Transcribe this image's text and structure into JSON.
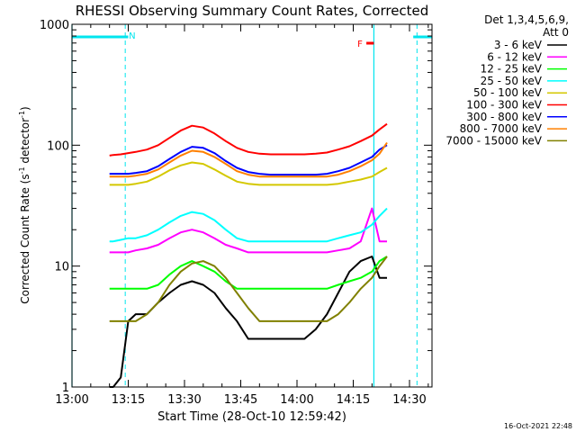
{
  "chart_data": {
    "type": "line",
    "title": "RHESSI Observing Summary Count Rates, Corrected",
    "xlabel": "Start Time (28-Oct-10 12:59:42)",
    "ylabel_main": "Corrected Count Rate (s",
    "ylabel_sup1": "-1",
    "ylabel_mid": " detector",
    "ylabel_sup2": "-1",
    "ylabel_end": ")",
    "yscale": "log",
    "ylim": [
      1,
      1000
    ],
    "y_ticks": [
      {
        "value": 1,
        "label": "1"
      },
      {
        "value": 10,
        "label": "10"
      },
      {
        "value": 100,
        "label": "100"
      },
      {
        "value": 1000,
        "label": "1000"
      }
    ],
    "xlim": [
      0,
      96
    ],
    "x_ticks": [
      {
        "value": 0,
        "label": "13:00"
      },
      {
        "value": 15,
        "label": "13:15"
      },
      {
        "value": 30,
        "label": "13:30"
      },
      {
        "value": 45,
        "label": "13:45"
      },
      {
        "value": 60,
        "label": "14:00"
      },
      {
        "value": 75,
        "label": "14:15"
      },
      {
        "value": 90,
        "label": "14:30"
      }
    ],
    "legend_header": [
      "Det 1,3,4,5,6,9,",
      "Att 0"
    ],
    "legend_position": "right",
    "footer_timestamp": "16-Oct-2021 22:48",
    "flags": {
      "night_label": "N",
      "flare_label": "F",
      "night_color": "#00e5ee",
      "flare_color": "#ff0000",
      "night_bars": [
        [
          0,
          15
        ],
        [
          91,
          96
        ]
      ],
      "vertical_markers_solid": [
        0,
        80.5
      ],
      "vertical_markers_dashed": [
        14.2,
        92
      ],
      "flare_bar": [
        78.5,
        80.5
      ]
    },
    "x": [
      10,
      11,
      13,
      15,
      17,
      20,
      23,
      26,
      29,
      32,
      35,
      38,
      41,
      44,
      47,
      50,
      53,
      56,
      59,
      62,
      65,
      68,
      71,
      74,
      77,
      80,
      82,
      84
    ],
    "series": [
      {
        "name": "3 - 6 keV",
        "color": "#000000",
        "values": [
          1.0,
          1.0,
          1.2,
          3.5,
          4,
          4,
          5,
          6,
          7,
          7.5,
          7,
          6,
          4.5,
          3.5,
          2.5,
          2.5,
          2.5,
          2.5,
          2.5,
          2.5,
          3,
          4,
          6,
          9,
          11,
          12,
          8,
          8
        ]
      },
      {
        "name": "6 - 12 keV",
        "color": "#ff00ff",
        "values": [
          13,
          13,
          13,
          13,
          13.5,
          14,
          15,
          17,
          19,
          20,
          19,
          17,
          15,
          14,
          13,
          13,
          13,
          13,
          13,
          13,
          13,
          13,
          13.5,
          14,
          16,
          30,
          16,
          16
        ]
      },
      {
        "name": "12 - 25 keV",
        "color": "#00ff00",
        "values": [
          6.5,
          6.5,
          6.5,
          6.5,
          6.5,
          6.5,
          7,
          8.5,
          10,
          11,
          10,
          9,
          7.5,
          6.5,
          6.5,
          6.5,
          6.5,
          6.5,
          6.5,
          6.5,
          6.5,
          6.5,
          7,
          7.5,
          8,
          9,
          11,
          12
        ]
      },
      {
        "name": "25 - 50 keV",
        "color": "#00ffff",
        "values": [
          16,
          16,
          16.5,
          17,
          17,
          18,
          20,
          23,
          26,
          28,
          27,
          24,
          20,
          17,
          16,
          16,
          16,
          16,
          16,
          16,
          16,
          16,
          17,
          18,
          19,
          22,
          26,
          30
        ]
      },
      {
        "name": "50 - 100 keV",
        "color": "#d4c800",
        "values": [
          47,
          47,
          47,
          47,
          48,
          50,
          55,
          62,
          68,
          72,
          70,
          63,
          56,
          50,
          48,
          47,
          47,
          47,
          47,
          47,
          47,
          47,
          48,
          50,
          52,
          55,
          60,
          65
        ]
      },
      {
        "name": "100 - 300 keV",
        "color": "#ff0000",
        "values": [
          82,
          83,
          84,
          86,
          88,
          92,
          100,
          115,
          132,
          145,
          140,
          125,
          108,
          95,
          88,
          85,
          84,
          84,
          84,
          84,
          85,
          87,
          92,
          98,
          108,
          120,
          135,
          150
        ]
      },
      {
        "name": "300 - 800 keV",
        "color": "#0000ff",
        "values": [
          58,
          58,
          58,
          58,
          59,
          61,
          67,
          77,
          88,
          97,
          95,
          86,
          74,
          65,
          60,
          58,
          57,
          57,
          57,
          57,
          57,
          58,
          61,
          65,
          72,
          80,
          92,
          100
        ]
      },
      {
        "name": "800 - 7000 keV",
        "color": "#ff8000",
        "values": [
          55,
          55,
          55,
          55,
          56,
          58,
          63,
          72,
          82,
          90,
          88,
          80,
          70,
          61,
          57,
          55,
          55,
          55,
          55,
          55,
          55,
          55,
          57,
          61,
          67,
          75,
          85,
          105
        ]
      },
      {
        "name": "7000 - 15000 keV",
        "color": "#808000",
        "values": [
          3.5,
          3.5,
          3.5,
          3.5,
          3.5,
          4,
          5,
          7,
          9,
          10.5,
          11,
          10,
          8,
          6,
          4.5,
          3.5,
          3.5,
          3.5,
          3.5,
          3.5,
          3.5,
          3.5,
          4,
          5,
          6.5,
          8,
          10,
          12
        ]
      }
    ]
  }
}
